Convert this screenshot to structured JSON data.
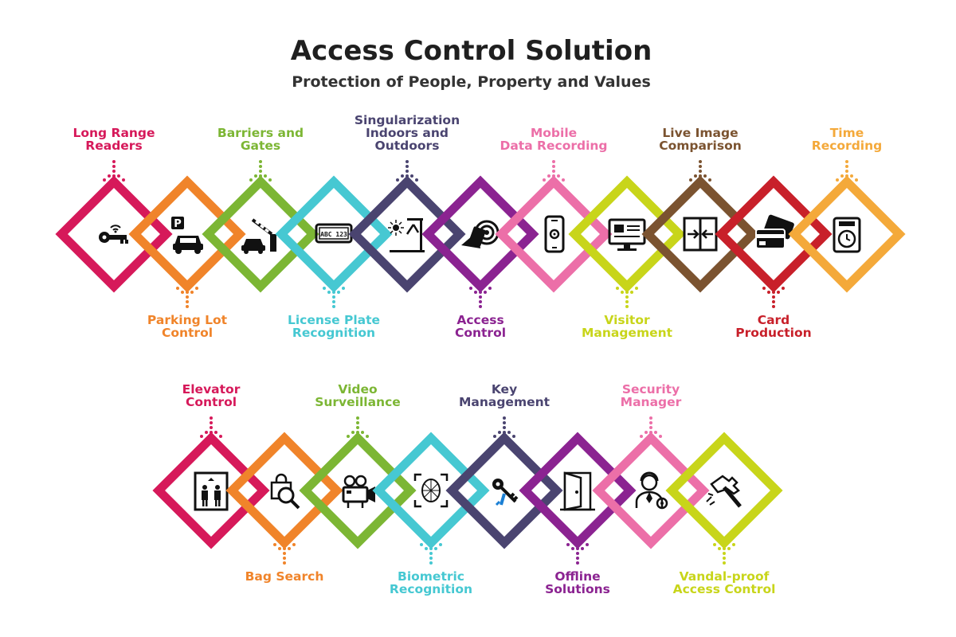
{
  "header": {
    "title": "Access Control Solution",
    "subtitle": "Protection of People, Property and Values"
  },
  "row1": [
    {
      "id": "long-range-readers",
      "lines": [
        "Long Range",
        "Readers"
      ],
      "color": "#d6195a",
      "label_pos": "top",
      "icon": "rfid-key-icon"
    },
    {
      "id": "parking-lot-control",
      "lines": [
        "Parking Lot",
        "Control"
      ],
      "color": "#f0842a",
      "label_pos": "bottom",
      "icon": "parking-car-icon"
    },
    {
      "id": "barriers-and-gates",
      "lines": [
        "Barriers and",
        "Gates"
      ],
      "color": "#7cb634",
      "label_pos": "top",
      "icon": "barrier-gate-icon"
    },
    {
      "id": "license-plate-recognition",
      "lines": [
        "License Plate",
        "Recognition"
      ],
      "color": "#46c8d2",
      "label_pos": "bottom",
      "icon": "license-plate-icon"
    },
    {
      "id": "singularization",
      "lines": [
        "Singularization",
        "Indoors and",
        "Outdoors"
      ],
      "color": "#4a4470",
      "label_pos": "top",
      "icon": "turnstile-icon"
    },
    {
      "id": "access-control",
      "lines": [
        "Access",
        "Control"
      ],
      "color": "#8b2391",
      "label_pos": "bottom",
      "icon": "card-reader-icon"
    },
    {
      "id": "mobile-data-recording",
      "lines": [
        "Mobile",
        "Data Recording"
      ],
      "color": "#ec6fa8",
      "label_pos": "top",
      "icon": "smartphone-icon"
    },
    {
      "id": "visitor-management",
      "lines": [
        "Visitor",
        "Management"
      ],
      "color": "#c8d51a",
      "label_pos": "bottom",
      "icon": "monitor-icon"
    },
    {
      "id": "live-image-comparison",
      "lines": [
        "Live Image",
        "Comparison"
      ],
      "color": "#7b5330",
      "label_pos": "top",
      "icon": "compare-arrows-icon"
    },
    {
      "id": "card-production",
      "lines": [
        "Card",
        "Production"
      ],
      "color": "#c8202a",
      "label_pos": "bottom",
      "icon": "cards-icon"
    },
    {
      "id": "time-recording",
      "lines": [
        "Time",
        "Recording"
      ],
      "color": "#f4a93a",
      "label_pos": "top",
      "icon": "time-clock-icon"
    }
  ],
  "row2": [
    {
      "id": "elevator-control",
      "lines": [
        "Elevator",
        "Control"
      ],
      "color": "#d6195a",
      "label_pos": "top",
      "icon": "elevator-icon"
    },
    {
      "id": "bag-search",
      "lines": [
        "Bag Search"
      ],
      "color": "#f0842a",
      "label_pos": "bottom",
      "icon": "bag-search-icon"
    },
    {
      "id": "video-surveillance",
      "lines": [
        "Video",
        "Surveillance"
      ],
      "color": "#7cb634",
      "label_pos": "top",
      "icon": "video-camera-icon"
    },
    {
      "id": "biometric-recognition",
      "lines": [
        "Biometric",
        "Recognition"
      ],
      "color": "#46c8d2",
      "label_pos": "bottom",
      "icon": "face-scan-icon"
    },
    {
      "id": "key-management",
      "lines": [
        "Key",
        "Management"
      ],
      "color": "#4a4470",
      "label_pos": "top",
      "icon": "keys-icon"
    },
    {
      "id": "offline-solutions",
      "lines": [
        "Offline",
        "Solutions"
      ],
      "color": "#8b2391",
      "label_pos": "bottom",
      "icon": "door-icon"
    },
    {
      "id": "security-manager",
      "lines": [
        "Security",
        "Manager"
      ],
      "color": "#ec6fa8",
      "label_pos": "top",
      "icon": "security-manager-icon"
    },
    {
      "id": "vandal-proof-access-control",
      "lines": [
        "Vandal-proof",
        "Access Control"
      ],
      "color": "#c8d51a",
      "label_pos": "bottom",
      "icon": "hammer-icon"
    }
  ]
}
